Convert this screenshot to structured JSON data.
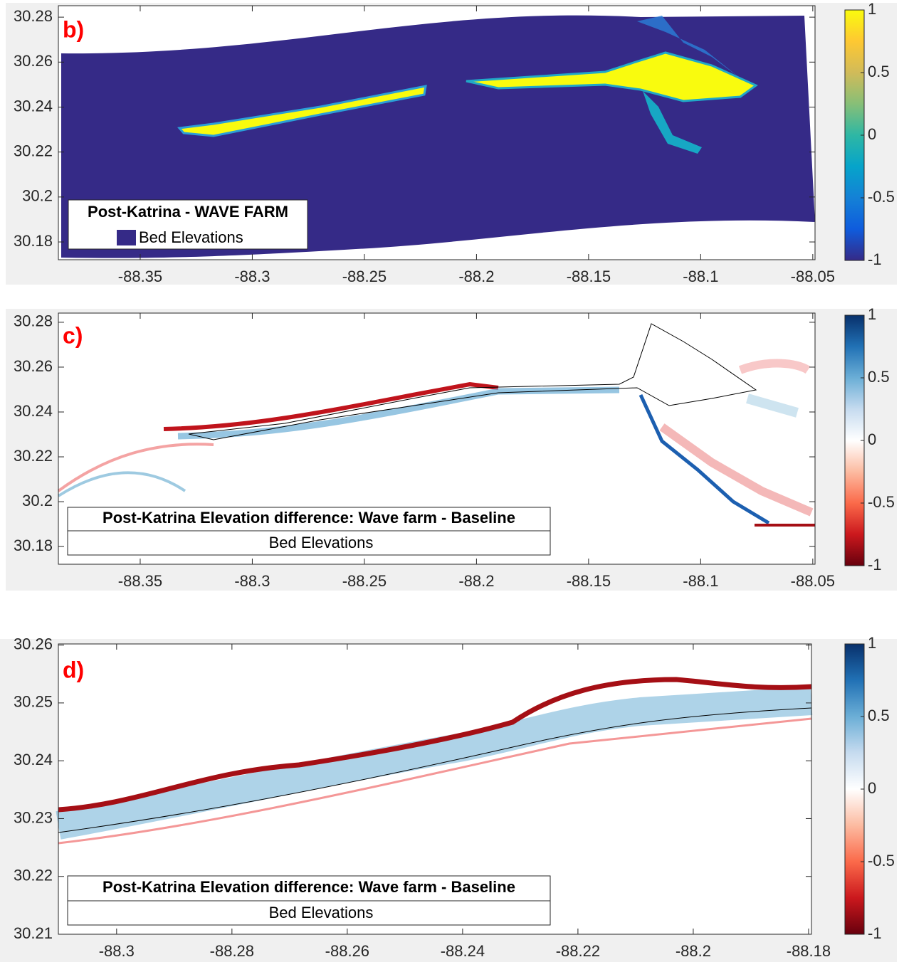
{
  "chart_data": [
    {
      "type": "map",
      "panel_label": "b)",
      "legend_title": "Post-Katrina - WAVE FARM",
      "legend_entry": "Bed Elevations",
      "legend_color": "#352a87",
      "xlim": [
        -88.3865,
        -88.049
      ],
      "xticks": [
        -88.35,
        -88.3,
        -88.25,
        -88.2,
        -88.15,
        -88.1,
        -88.05
      ],
      "ylim": [
        30.1721,
        30.2851
      ],
      "yticks": [
        30.18,
        30.2,
        30.22,
        30.24,
        30.26,
        30.28
      ],
      "clim": [
        -1,
        1
      ],
      "cticks": [
        -1,
        -0.5,
        0,
        0.5,
        1
      ],
      "colormap": [
        "#352a87",
        "#0f5cdd",
        "#1481d6",
        "#06a4ca",
        "#2eb7a4",
        "#87bf77",
        "#d1bb59",
        "#fec832",
        "#f9fb0e"
      ]
    },
    {
      "type": "map",
      "panel_label": "c)",
      "legend_title": "Post-Katrina Elevation difference: Wave farm - Baseline",
      "legend_entry": "Bed Elevations",
      "xlim": [
        -88.3865,
        -88.049
      ],
      "xticks": [
        -88.35,
        -88.3,
        -88.25,
        -88.2,
        -88.15,
        -88.1,
        -88.05
      ],
      "ylim": [
        30.1721,
        30.2841
      ],
      "yticks": [
        30.18,
        30.2,
        30.22,
        30.24,
        30.26,
        30.28
      ],
      "clim": [
        -1,
        1
      ],
      "cticks": [
        -1,
        -0.5,
        0,
        0.5,
        1
      ],
      "colormap": [
        "#67000d",
        "#cb181d",
        "#fb6a4a",
        "#fcbba1",
        "#ffffff",
        "#c6dbef",
        "#6baed6",
        "#2171b5",
        "#08306b"
      ]
    },
    {
      "type": "map",
      "panel_label": "d)",
      "legend_title": "Post-Katrina Elevation difference: Wave farm - Baseline",
      "legend_entry": "Bed Elevations",
      "xlim": [
        -88.3101,
        -88.1795
      ],
      "xticks": [
        -88.3,
        -88.28,
        -88.26,
        -88.24,
        -88.22,
        -88.2,
        -88.18
      ],
      "ylim": [
        30.21,
        30.2602
      ],
      "yticks": [
        30.21,
        30.22,
        30.23,
        30.24,
        30.25,
        30.26
      ],
      "clim": [
        -1,
        1
      ],
      "cticks": [
        -1,
        -0.5,
        0,
        0.5,
        1
      ],
      "colormap": [
        "#67000d",
        "#cb181d",
        "#fb6a4a",
        "#fcbba1",
        "#ffffff",
        "#c6dbef",
        "#6baed6",
        "#2171b5",
        "#08306b"
      ]
    }
  ]
}
